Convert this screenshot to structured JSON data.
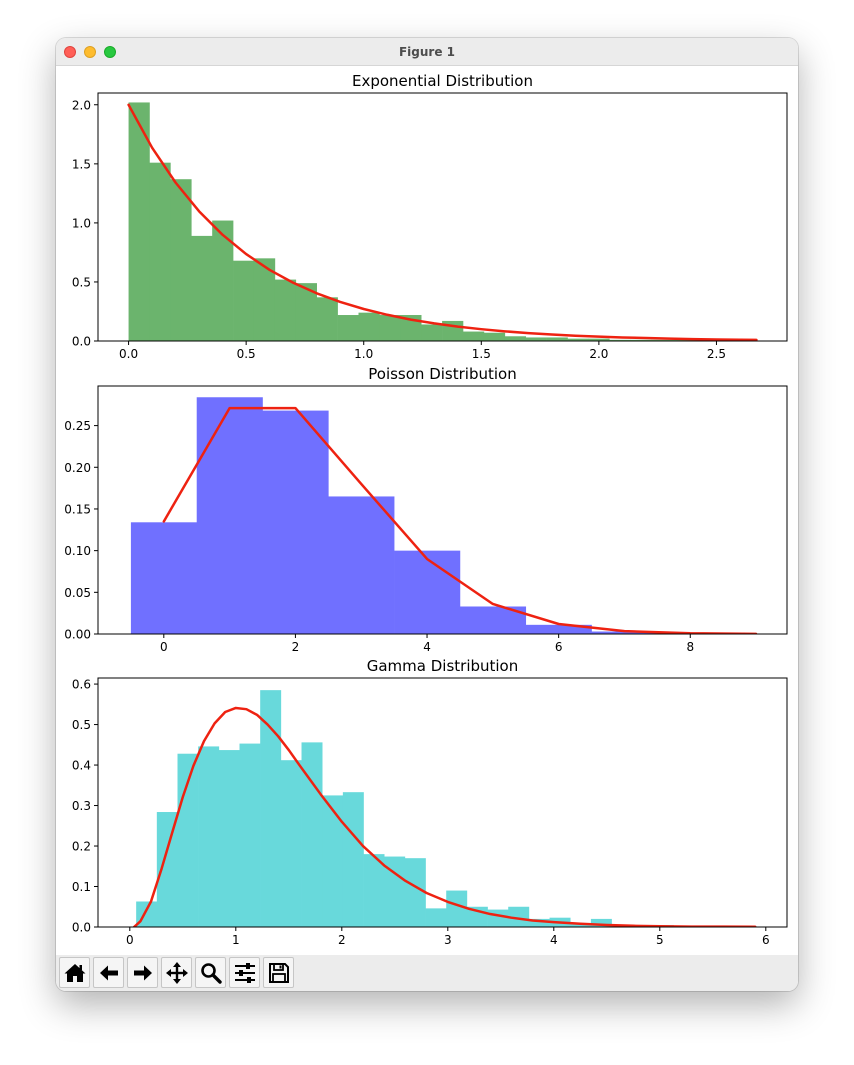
{
  "window": {
    "title": "Figure 1"
  },
  "toolbar": {
    "buttons": [
      {
        "name": "home",
        "icon": "home-icon"
      },
      {
        "name": "back",
        "icon": "arrow-left-icon"
      },
      {
        "name": "forward",
        "icon": "arrow-right-icon"
      },
      {
        "name": "pan",
        "icon": "move-icon"
      },
      {
        "name": "zoom",
        "icon": "zoom-icon"
      },
      {
        "name": "configure-subplots",
        "icon": "sliders-icon"
      },
      {
        "name": "save",
        "icon": "save-icon"
      }
    ]
  },
  "colors": {
    "exponential_bars": "#6bb46d",
    "poisson_bars": "#7070ff",
    "gamma_bars": "#68d9db",
    "pdf_line": "#ee2211"
  },
  "chart_data": [
    {
      "type": "bar",
      "title": "Exponential Distribution",
      "xlabel": "",
      "ylabel": "",
      "xlim": [
        -0.13,
        2.8
      ],
      "ylim": [
        0,
        2.1
      ],
      "xticks": [
        0.0,
        0.5,
        1.0,
        1.5,
        2.0,
        2.5
      ],
      "xtick_labels": [
        "0.0",
        "0.5",
        "1.0",
        "1.5",
        "2.0",
        "2.5"
      ],
      "yticks": [
        0.0,
        0.5,
        1.0,
        1.5,
        2.0
      ],
      "ytick_labels": [
        "0.0",
        "0.5",
        "1.0",
        "1.5",
        "2.0"
      ],
      "series": [
        {
          "name": "histogram",
          "kind": "bar",
          "edges": [
            0.0,
            0.0889,
            0.1778,
            0.2667,
            0.3556,
            0.4444,
            0.5333,
            0.6222,
            0.7111,
            0.8,
            0.8889,
            0.9778,
            1.0667,
            1.1556,
            1.2444,
            1.3333,
            1.4222,
            1.5111,
            1.6,
            1.6889,
            1.7778,
            1.8667,
            1.9556,
            2.0444,
            2.1333,
            2.2222,
            2.3111,
            2.4,
            2.4889,
            2.5778,
            2.6667
          ],
          "values": [
            2.02,
            1.51,
            1.37,
            0.89,
            1.02,
            0.68,
            0.7,
            0.52,
            0.49,
            0.37,
            0.22,
            0.24,
            0.22,
            0.22,
            0.14,
            0.17,
            0.08,
            0.07,
            0.04,
            0.03,
            0.03,
            0.02,
            0.02,
            0.01,
            0.01,
            0.01,
            0.01,
            0.01,
            0.0,
            0.01
          ]
        },
        {
          "name": "pdf",
          "kind": "line",
          "x": [
            0.0,
            0.1,
            0.2,
            0.3,
            0.4,
            0.5,
            0.6,
            0.7,
            0.8,
            0.9,
            1.0,
            1.1,
            1.2,
            1.3,
            1.4,
            1.5,
            1.6,
            1.7,
            1.8,
            1.9,
            2.0,
            2.1,
            2.2,
            2.3,
            2.4,
            2.5,
            2.6,
            2.67
          ],
          "y": [
            2.0,
            1.637,
            1.341,
            1.098,
            0.899,
            0.736,
            0.602,
            0.493,
            0.404,
            0.331,
            0.271,
            0.222,
            0.181,
            0.149,
            0.122,
            0.1,
            0.082,
            0.067,
            0.055,
            0.045,
            0.037,
            0.03,
            0.025,
            0.02,
            0.016,
            0.013,
            0.011,
            0.01
          ]
        }
      ]
    },
    {
      "type": "bar",
      "title": "Poisson Distribution",
      "xlabel": "",
      "ylabel": "",
      "xlim": [
        -1.0,
        9.47
      ],
      "ylim": [
        0,
        0.2975
      ],
      "xticks": [
        0,
        2,
        4,
        6,
        8
      ],
      "xtick_labels": [
        "0",
        "2",
        "4",
        "6",
        "8"
      ],
      "yticks": [
        0.0,
        0.05,
        0.1,
        0.15,
        0.2,
        0.25
      ],
      "ytick_labels": [
        "0.00",
        "0.05",
        "0.10",
        "0.15",
        "0.20",
        "0.25"
      ],
      "series": [
        {
          "name": "histogram",
          "kind": "bar",
          "edges": [
            -0.5,
            0.5,
            1.5,
            2.5,
            3.5,
            4.5,
            5.5,
            6.5,
            7.5,
            8.5
          ],
          "values": [
            0.134,
            0.284,
            0.268,
            0.165,
            0.1,
            0.033,
            0.011,
            0.003,
            0.001
          ]
        },
        {
          "name": "pmf",
          "kind": "line",
          "x": [
            0,
            1,
            2,
            3,
            4,
            5,
            6,
            7,
            8,
            9
          ],
          "y": [
            0.135,
            0.271,
            0.271,
            0.18,
            0.09,
            0.036,
            0.012,
            0.0034,
            0.0009,
            0.0002
          ]
        }
      ]
    },
    {
      "type": "bar",
      "title": "Gamma Distribution",
      "xlabel": "",
      "ylabel": "",
      "xlim": [
        -0.3,
        6.2
      ],
      "ylim": [
        0,
        0.615
      ],
      "xticks": [
        0,
        1,
        2,
        3,
        4,
        5,
        6
      ],
      "xtick_labels": [
        "0",
        "1",
        "2",
        "3",
        "4",
        "5",
        "6"
      ],
      "yticks": [
        0.0,
        0.1,
        0.2,
        0.3,
        0.4,
        0.5,
        0.6
      ],
      "ytick_labels": [
        "0.0",
        "0.1",
        "0.2",
        "0.3",
        "0.4",
        "0.5",
        "0.6"
      ],
      "series": [
        {
          "name": "histogram",
          "kind": "bar",
          "edges": [
            0.06,
            0.255,
            0.45,
            0.645,
            0.84,
            1.035,
            1.23,
            1.425,
            1.62,
            1.815,
            2.01,
            2.205,
            2.4,
            2.595,
            2.79,
            2.985,
            3.18,
            3.375,
            3.57,
            3.765,
            3.96,
            4.155,
            4.35,
            4.545,
            4.74,
            4.935,
            5.13,
            5.325,
            5.52,
            5.715,
            5.91
          ],
          "values": [
            0.063,
            0.284,
            0.428,
            0.446,
            0.437,
            0.453,
            0.585,
            0.412,
            0.456,
            0.325,
            0.333,
            0.18,
            0.174,
            0.17,
            0.046,
            0.09,
            0.05,
            0.043,
            0.05,
            0.02,
            0.023,
            0.01,
            0.02,
            0.005,
            0.005,
            0.005,
            0.003,
            0.002,
            0.002,
            0.002
          ]
        },
        {
          "name": "pdf",
          "kind": "line",
          "x": [
            0.04,
            0.1,
            0.2,
            0.3,
            0.4,
            0.5,
            0.6,
            0.7,
            0.8,
            0.9,
            1.0,
            1.1,
            1.2,
            1.3,
            1.4,
            1.5,
            1.6,
            1.7,
            1.8,
            1.9,
            2.0,
            2.2,
            2.4,
            2.6,
            2.8,
            3.0,
            3.2,
            3.4,
            3.6,
            3.8,
            4.0,
            4.25,
            4.5,
            4.75,
            5.0,
            5.3,
            5.6,
            5.9
          ],
          "y": [
            0.0,
            0.014,
            0.063,
            0.144,
            0.233,
            0.321,
            0.398,
            0.459,
            0.503,
            0.531,
            0.541,
            0.538,
            0.524,
            0.5,
            0.471,
            0.437,
            0.4,
            0.364,
            0.328,
            0.294,
            0.26,
            0.2,
            0.152,
            0.114,
            0.084,
            0.062,
            0.045,
            0.032,
            0.023,
            0.016,
            0.012,
            0.008,
            0.005,
            0.003,
            0.002,
            0.001,
            0.001,
            0.0005
          ]
        }
      ]
    }
  ]
}
